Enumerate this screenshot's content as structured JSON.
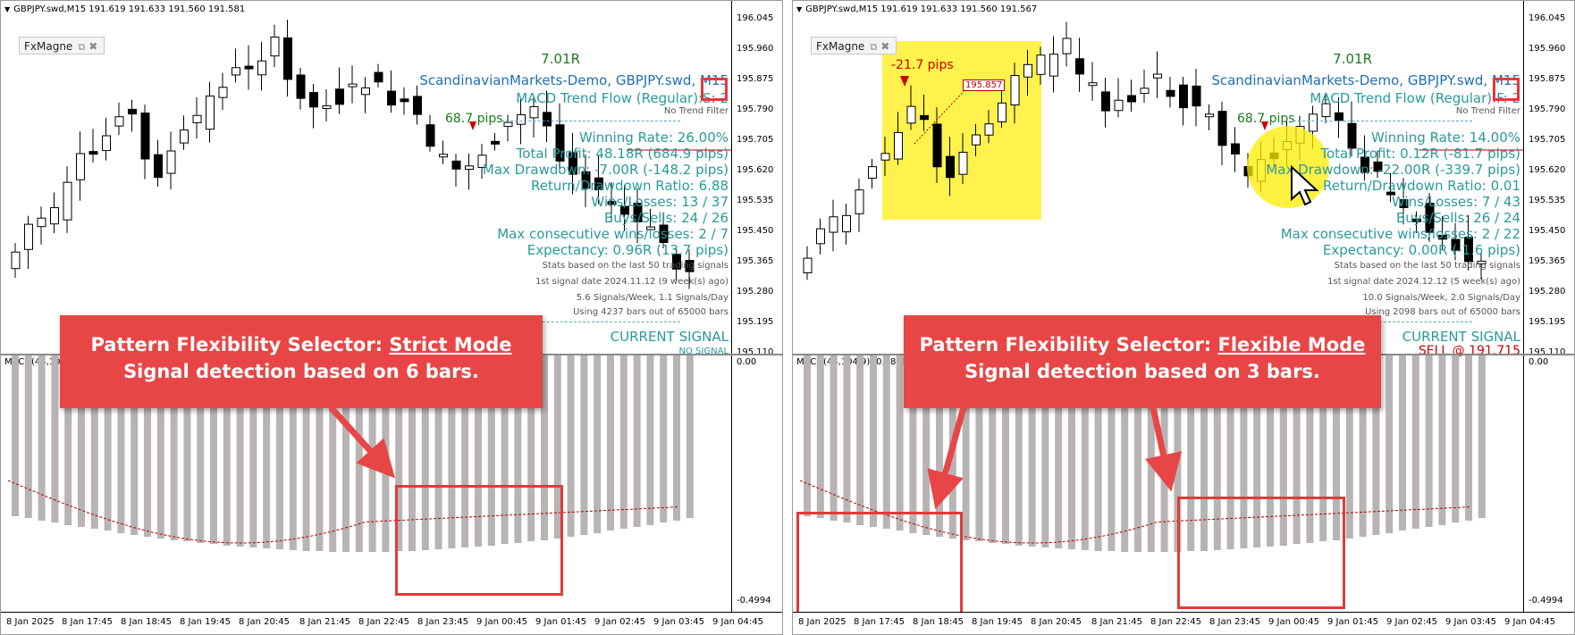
{
  "colors": {
    "profit_blue": "#1f6fb4",
    "teal": "#2a9a9a",
    "green": "#1a7a1a",
    "red": "#cc0000",
    "highlight": "#e03b3b",
    "callout": "#e84646"
  },
  "price_axis": [
    "196.045",
    "195.960",
    "195.875",
    "195.790",
    "195.705",
    "195.620",
    "195.535",
    "195.450",
    "195.365",
    "195.280",
    "195.195",
    "195.110"
  ],
  "macd_axis": [
    "0.00",
    "-0.4994"
  ],
  "time_axis": [
    "8 Jan 2025",
    "8 Jan 17:45",
    "8 Jan 18:45",
    "8 Jan 19:45",
    "8 Jan 20:45",
    "8 Jan 21:45",
    "8 Jan 22:45",
    "8 Jan 23:45",
    "9 Jan 00:45",
    "9 Jan 01:45",
    "9 Jan 02:45",
    "9 Jan 03:45",
    "9 Jan 04:45"
  ],
  "left": {
    "symbol": "GBPJPY.swd,M15  191.619 191.633 191.560 191.581",
    "fx_label": "FxMagne",
    "macd_title": "MACD(48,10",
    "ratio": "7.01R",
    "broker": "ScandinavianMarkets-Demo, GBPJPY.swd, M15",
    "trend_flow": "MACD Trend Flow (Regular):S: 2",
    "no_trend": "No Trend Filter",
    "pips": "68.7 pips",
    "winning": "Winning Rate: 26.00%",
    "profit": "Total Profit: 48.18R (684.9 pips)",
    "drawdown": "Max Drawdown: -7.00R (-148.2 pips)",
    "ratio_dd": "Return/Drawdown Ratio: 6.88",
    "wins": "Wins/Losses: 13 / 37",
    "buys": "Buys/Sells: 24 / 26",
    "consec": "Max consecutive wins/losses: 2 / 7",
    "expectancy": "Expectancy: 0.96R (13.7 pips)",
    "stats": "Stats based on the last 50 trading signals",
    "first": "1st signal date 2024.11.12 (9 week(s) ago)",
    "freq": "5.6 Signals/Week,    1.1 Signals/Day",
    "using": "Using 4237 bars out of 65000 bars",
    "current": "CURRENT SIGNAL",
    "current2": "NO SIGNAL",
    "callout_prefix": "Pattern Flexibility Selector: ",
    "callout_mode": "Strict Mode",
    "callout_line2": "Signal detection based on 6 bars."
  },
  "right": {
    "symbol": "GBPJPY.swd,M15  191.619 191.633 191.560 191.567",
    "fx_label": "FxMagne",
    "macd_title": "MACD(48,104,9) -0.1879 -0.",
    "ratio": "7.01R",
    "broker": "ScandinavianMarkets-Demo, GBPJPY.swd, M15",
    "trend_flow": "MACD Trend Flow (Regular):F: 2",
    "no_trend": "No Trend Filter",
    "pips_neg": "-21.7 pips",
    "price_tag": "195.857",
    "pips": "68.7 pips",
    "winning": "Winning Rate: 14.00%",
    "profit": "Total Profit: 0.12R (-81.7 pips)",
    "drawdown": "Max Drawdown: -22.00R (-339.7 pips)",
    "ratio_dd": "Return/Drawdown Ratio: 0.01",
    "wins": "Wins/Losses: 7 / 43",
    "buys": "Buys/Sells: 26 / 24",
    "consec": "Max consecutive wins/losses: 2 / 22",
    "expectancy": "Expectancy: 0.00R (-1.6 pips)",
    "stats": "Stats based on the last 50 trading signals",
    "first": "1st signal date 2024.12.12 (5 week(s) ago)",
    "freq": "10.0 Signals/Week,    2.0 Signals/Day",
    "using": "Using 2098 bars out of 65000 bars",
    "current": "CURRENT SIGNAL",
    "current2": "SELL @ 191.715",
    "callout_prefix": "Pattern Flexibility Selector: ",
    "callout_mode": "Flexible Mode",
    "callout_line2": "Signal detection based on 3 bars."
  }
}
